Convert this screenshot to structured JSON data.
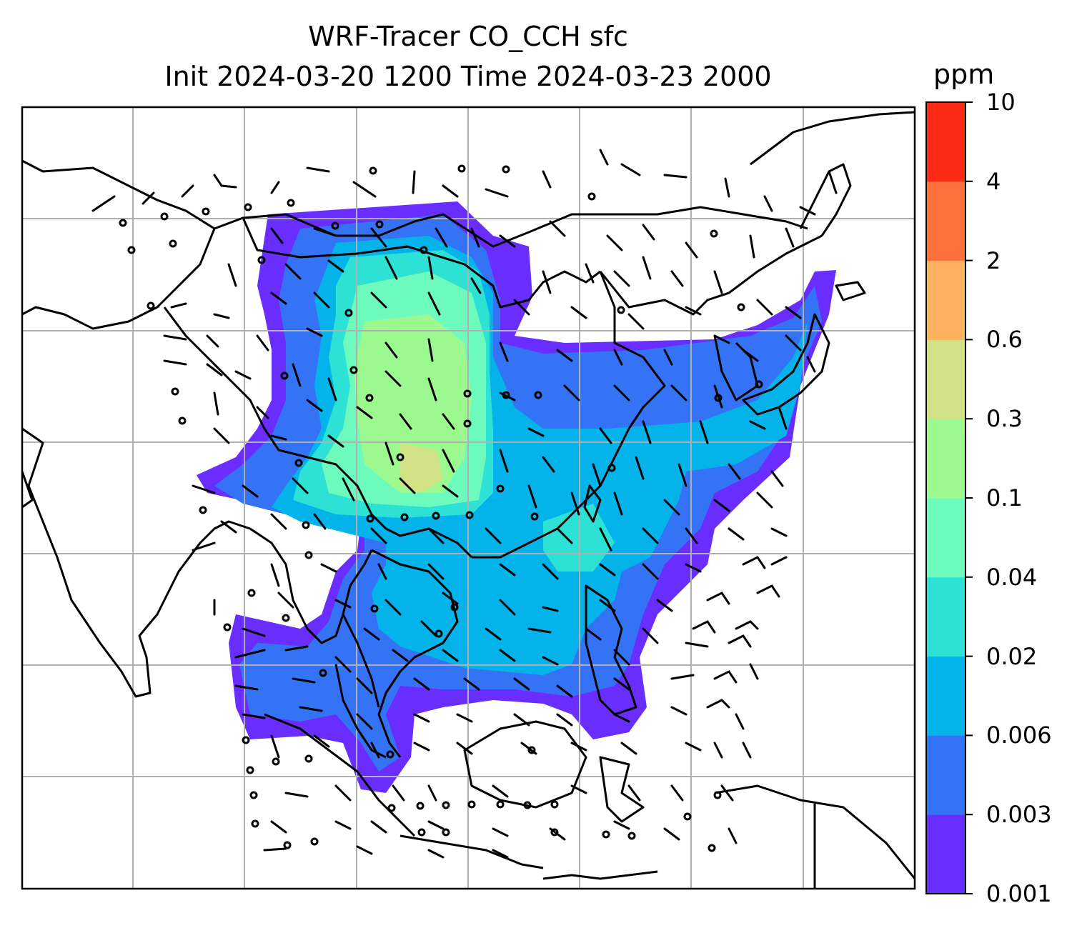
{
  "title": {
    "line1": "WRF-Tracer CO_CCH sfc",
    "line2": "Init 2024-03-20 1200 Time 2024-03-23 2000"
  },
  "colorbar": {
    "unit": "ppm",
    "ticks": [
      "0.001",
      "0.003",
      "0.006",
      "0.02",
      "0.04",
      "0.1",
      "0.3",
      "0.6",
      "2",
      "4",
      "10"
    ],
    "colors": [
      "#6a2dff",
      "#3473f6",
      "#03b3ea",
      "#2de1d5",
      "#6cfbbd",
      "#9cf98f",
      "#d2e186",
      "#feb25f",
      "#fe703c",
      "#ff2a16"
    ]
  },
  "map": {
    "gridlines": true,
    "wind_barbs": true
  }
}
